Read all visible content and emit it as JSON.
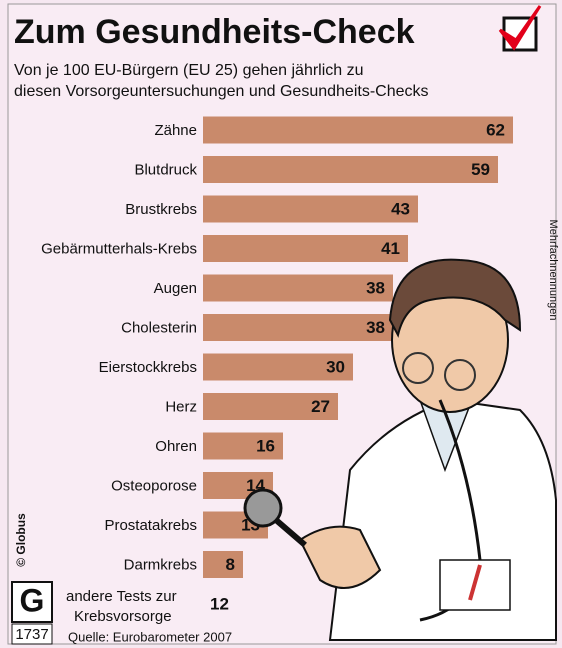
{
  "chart_data": {
    "type": "bar",
    "title": "Zum Gesundheits-Check",
    "subtitle": [
      "Von je 100 EU-Bürgern (EU 25) gehen jährlich zu",
      "diesen Vorsorgeuntersuchungen und Gesundheits-Checks"
    ],
    "categories": [
      "Zähne",
      "Blutdruck",
      "Brustkrebs",
      "Gebärmutterhals-Krebs",
      "Augen",
      "Cholesterin",
      "Eierstockkrebs",
      "Herz",
      "Ohren",
      "Osteoporose",
      "Prostatakrebs",
      "Darmkrebs"
    ],
    "values": [
      62,
      59,
      43,
      41,
      38,
      38,
      30,
      27,
      16,
      14,
      13,
      8
    ],
    "color": "#c98a6b",
    "other": {
      "label": [
        "andere Tests zur",
        "Krebsvorsorge"
      ],
      "value": 12
    },
    "note": "Mehrfachnennungen",
    "source": "Quelle: Eurobarometer 2007",
    "credit": "© Globus",
    "number": "1737"
  }
}
